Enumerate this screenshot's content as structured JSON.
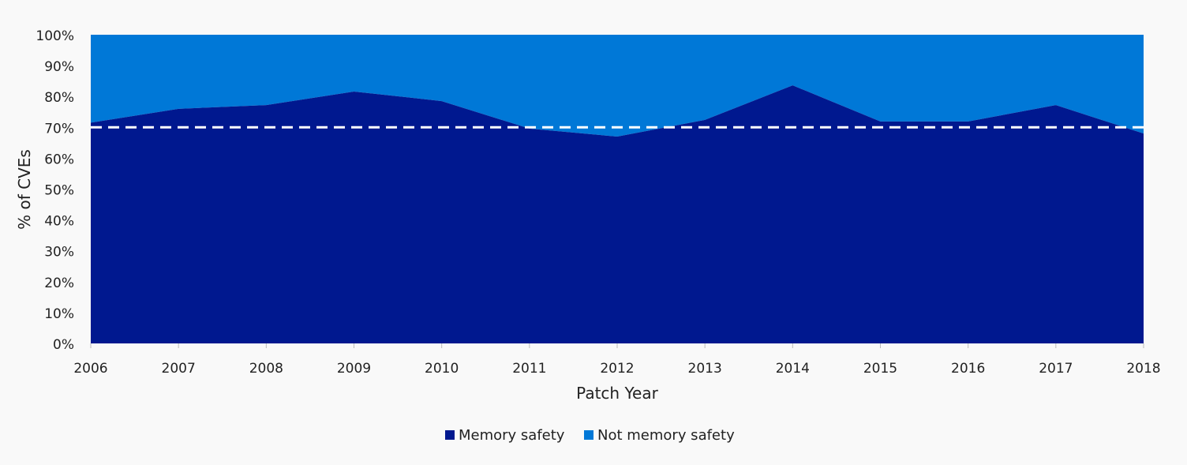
{
  "chart_data": {
    "type": "area",
    "stacked": true,
    "percent_stacked": true,
    "x": [
      2006,
      2007,
      2008,
      2009,
      2010,
      2011,
      2012,
      2013,
      2014,
      2015,
      2016,
      2017,
      2018
    ],
    "x_ticks": [
      "2006",
      "2007",
      "2008",
      "2009",
      "2010",
      "2011",
      "2012",
      "2013",
      "2014",
      "2015",
      "2016",
      "2017",
      "2018"
    ],
    "series": [
      {
        "name": "Memory safety",
        "color": "#00188f",
        "values": [
          71.5,
          76,
          77.2,
          81.6,
          78.5,
          69.6,
          67,
          72.4,
          83.6,
          71.9,
          71.9,
          77.2,
          68
        ]
      },
      {
        "name": "Not memory safety",
        "color": "#0078d7",
        "values": [
          28.5,
          24,
          22.8,
          18.4,
          21.5,
          30.4,
          33,
          27.6,
          16.4,
          28.1,
          28.1,
          22.8,
          32
        ]
      }
    ],
    "reference_line": {
      "value": 70,
      "style": "dashed",
      "color": "#ffffff"
    },
    "xlabel": "Patch Year",
    "ylabel": "%  of CVEs",
    "ylim": [
      0,
      100
    ],
    "y_ticks": [
      "0%",
      "10%",
      "20%",
      "30%",
      "40%",
      "50%",
      "60%",
      "70%",
      "80%",
      "90%",
      "100%"
    ],
    "grid": false,
    "legend_position": "bottom"
  }
}
